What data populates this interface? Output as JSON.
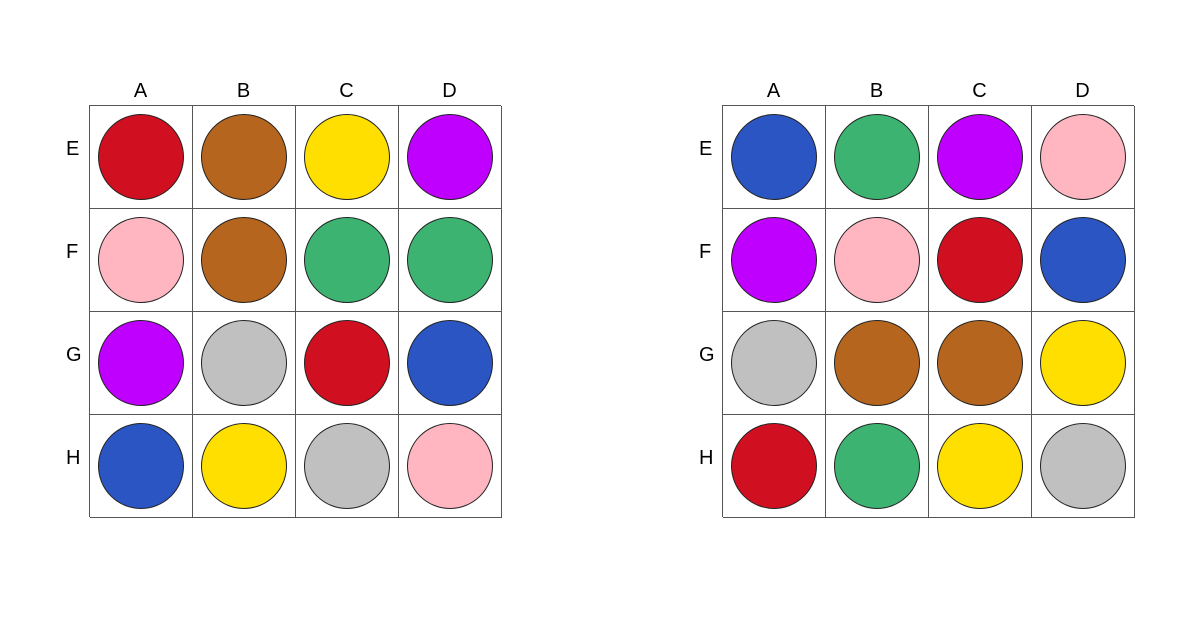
{
  "boards": [
    {
      "id": "left",
      "columns": [
        "A",
        "B",
        "C",
        "D"
      ],
      "rows": [
        "E",
        "F",
        "G",
        "H"
      ],
      "cells": [
        [
          "red",
          "brown",
          "yellow",
          "purple"
        ],
        [
          "pink",
          "brown",
          "green",
          "green"
        ],
        [
          "purple",
          "gray",
          "red",
          "blue"
        ],
        [
          "blue",
          "yellow",
          "gray",
          "pink"
        ]
      ]
    },
    {
      "id": "right",
      "columns": [
        "A",
        "B",
        "C",
        "D"
      ],
      "rows": [
        "E",
        "F",
        "G",
        "H"
      ],
      "cells": [
        [
          "blue",
          "green",
          "purple",
          "pink"
        ],
        [
          "purple",
          "pink",
          "red",
          "blue"
        ],
        [
          "gray",
          "brown",
          "brown",
          "yellow"
        ],
        [
          "red",
          "green",
          "yellow",
          "gray"
        ]
      ]
    }
  ],
  "colors": {
    "red": "#d01020",
    "brown": "#b5651d",
    "yellow": "#ffdf00",
    "purple": "#bf00ff",
    "pink": "#ffb6c1",
    "green": "#3cb371",
    "gray": "#c0c0c0",
    "blue": "#2a55c2"
  }
}
